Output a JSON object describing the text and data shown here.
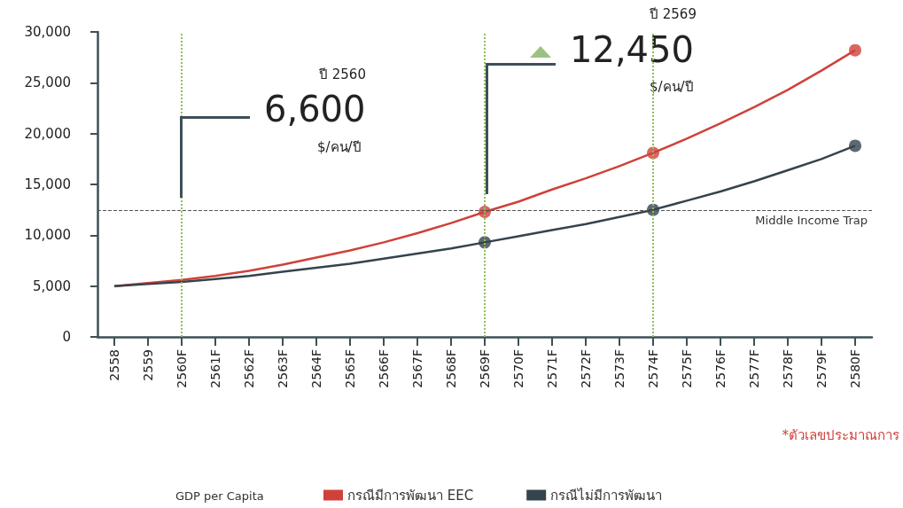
{
  "chart_data": {
    "type": "line",
    "categories": [
      "2558",
      "2559",
      "2560F",
      "2561F",
      "2562F",
      "2563F",
      "2564F",
      "2565F",
      "2566F",
      "2567F",
      "2568F",
      "2569F",
      "2570F",
      "2571F",
      "2572F",
      "2573F",
      "2574F",
      "2575F",
      "2576F",
      "2577F",
      "2578F",
      "2579F",
      "2580F"
    ],
    "series": [
      {
        "name": "กรณีมีการพัฒนา EEC",
        "color": "#d0413a",
        "values": [
          5000,
          5300,
          5600,
          6000,
          6500,
          7100,
          7800,
          8500,
          9300,
          10200,
          11200,
          12300,
          13300,
          14500,
          15600,
          16800,
          18100,
          19500,
          21000,
          22600,
          24300,
          26200,
          28200
        ]
      },
      {
        "name": "กรณีไม่มีการพัฒนา",
        "color": "#34444c",
        "values": [
          5000,
          5200,
          5400,
          5700,
          6000,
          6400,
          6800,
          7200,
          7700,
          8200,
          8700,
          9300,
          9900,
          10500,
          11100,
          11800,
          12500,
          13400,
          14300,
          15300,
          16400,
          17500,
          18800
        ]
      },
      {
        "type": "scatter",
        "marker": "circle",
        "color": "#d0413a",
        "x": [
          "2569F",
          "2574F",
          "2580F"
        ],
        "values": [
          12300,
          18100,
          28200
        ]
      },
      {
        "type": "scatter",
        "marker": "circle",
        "color": "#34444c",
        "x": [
          "2569F",
          "2574F",
          "2580F"
        ],
        "values": [
          9300,
          12500,
          18800
        ]
      }
    ],
    "ylim": [
      0,
      30000
    ],
    "yticks": [
      0,
      {
        "value": 5000,
        "label": "5,000"
      },
      {
        "value": 10000,
        "label": "10,000"
      },
      {
        "value": 15000,
        "label": "15,000"
      },
      {
        "value": 20000,
        "label": "20,000"
      },
      {
        "value": 25000,
        "label": "25,000"
      },
      {
        "value": 30000,
        "label": "30,000"
      }
    ],
    "ref_lines": [
      {
        "axis": "y",
        "value": 12450,
        "label": "Middle Income Trap",
        "color": "#555555",
        "line_style": "dashed"
      },
      {
        "axis": "x",
        "value": "2560F",
        "color": "#8fbf5a",
        "line_style": "dotted"
      },
      {
        "axis": "x",
        "value": "2569F",
        "color": "#8fbf5a",
        "line_style": "dotted"
      },
      {
        "axis": "x",
        "value": "2574F",
        "color": "#8fbf5a",
        "line_style": "dotted"
      }
    ],
    "annotations": [
      "ปี 2560",
      "6,600",
      "$/คน/ปี",
      "ปี 2569",
      "12,450",
      "$/คน/ปี",
      "*ตัวเลขประมาณการ"
    ],
    "legend_title": "GDP per Capita",
    "legend": "bottom",
    "line_style": "solid"
  }
}
